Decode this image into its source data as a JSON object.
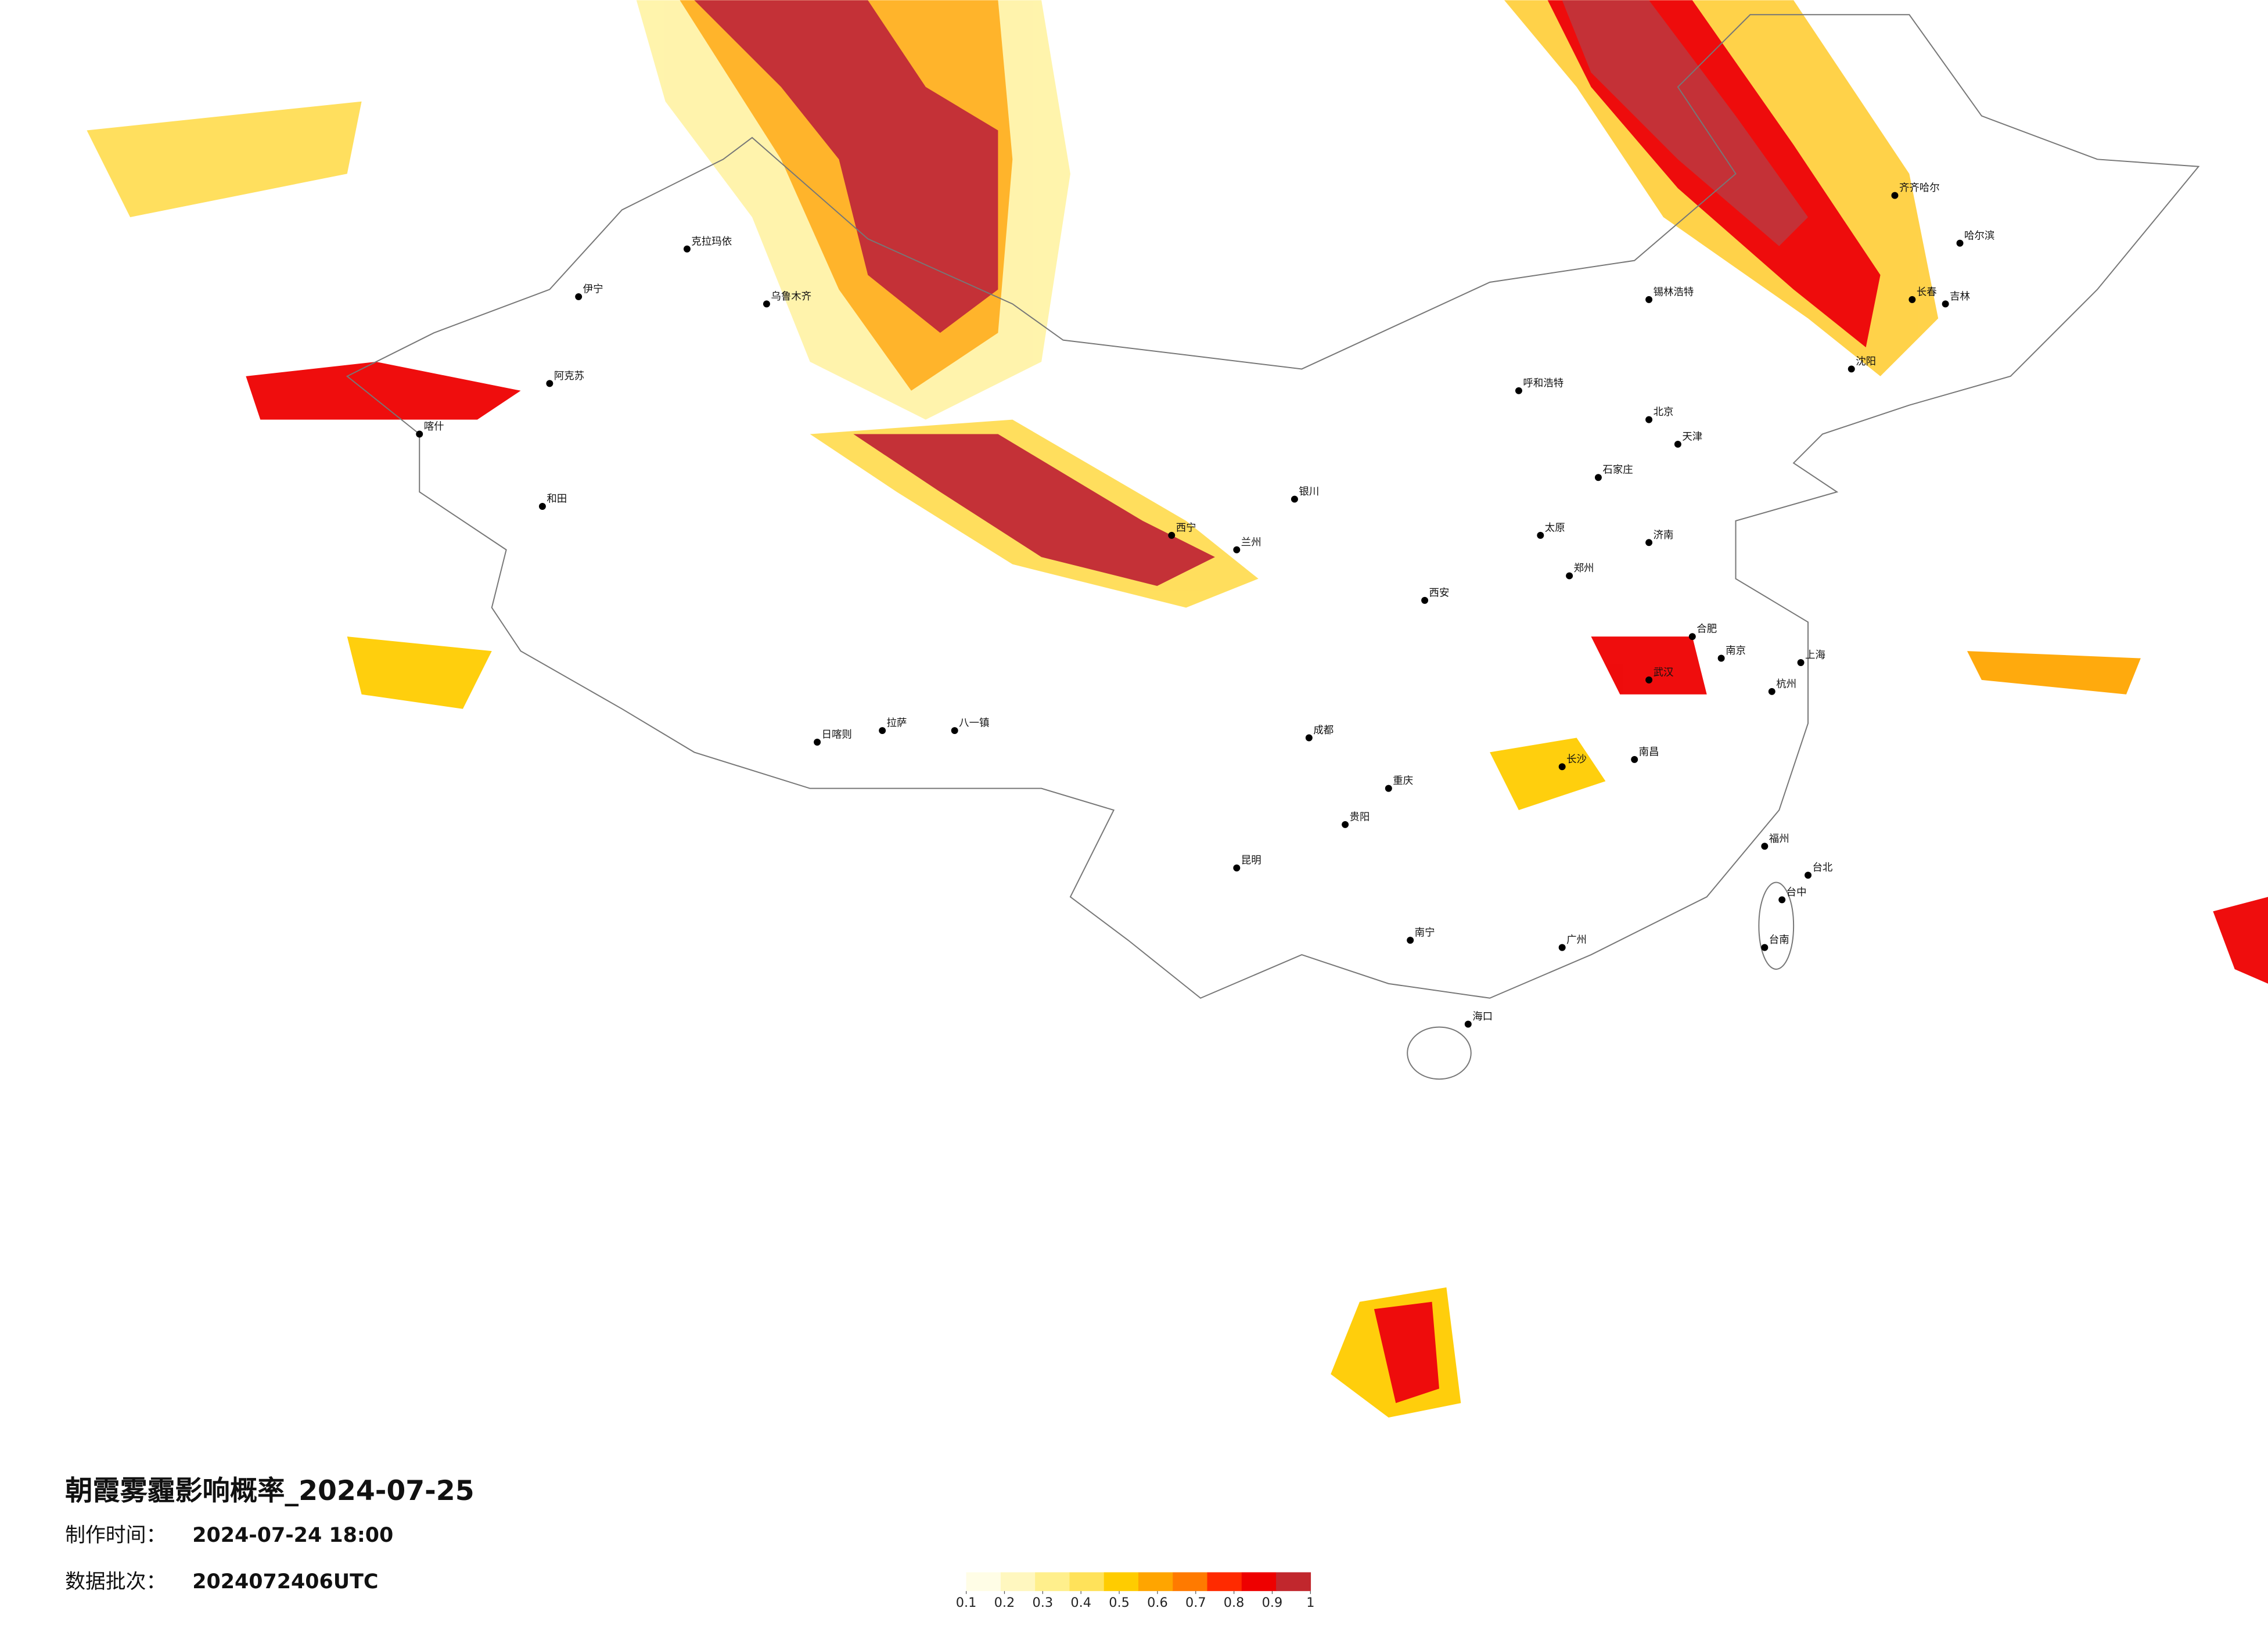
{
  "title": "朝霞雾霾影响概率_2024-07-25",
  "made_label": "制作时间：",
  "made_time": "2024-07-24 18:00",
  "batch_label": "数据批次：",
  "batch": "2024072406UTC",
  "legend": {
    "colors": [
      "#fffde6",
      "#fff7bf",
      "#ffef8c",
      "#ffe25a",
      "#ffcc00",
      "#ffa500",
      "#ff7a00",
      "#ff2a00",
      "#ee0000",
      "#c1272d"
    ],
    "ticks": [
      0.1,
      0.2,
      0.3,
      0.4,
      0.5,
      0.6,
      0.7,
      0.8,
      0.9,
      1
    ]
  },
  "cities": [
    "克拉玛依",
    "乌鲁木齐",
    "伊宁",
    "阿克苏",
    "喀什",
    "和田",
    "哈尔滨",
    "长春",
    "沈阳",
    "北京",
    "天津",
    "石家庄",
    "太原",
    "郑州",
    "西安",
    "兰州",
    "西宁",
    "银川",
    "呼和浩特",
    "成都",
    "重庆",
    "武汉",
    "长沙",
    "南昌",
    "杭州",
    "上海",
    "南京",
    "福州",
    "广州",
    "南宁",
    "昆明",
    "贵阳",
    "拉萨",
    "海口",
    "台北",
    "台中",
    "台南",
    "锡林浩特",
    "八一镇",
    "日喀则",
    "齐齐哈尔",
    "吉林",
    "济南",
    "合肥"
  ]
}
